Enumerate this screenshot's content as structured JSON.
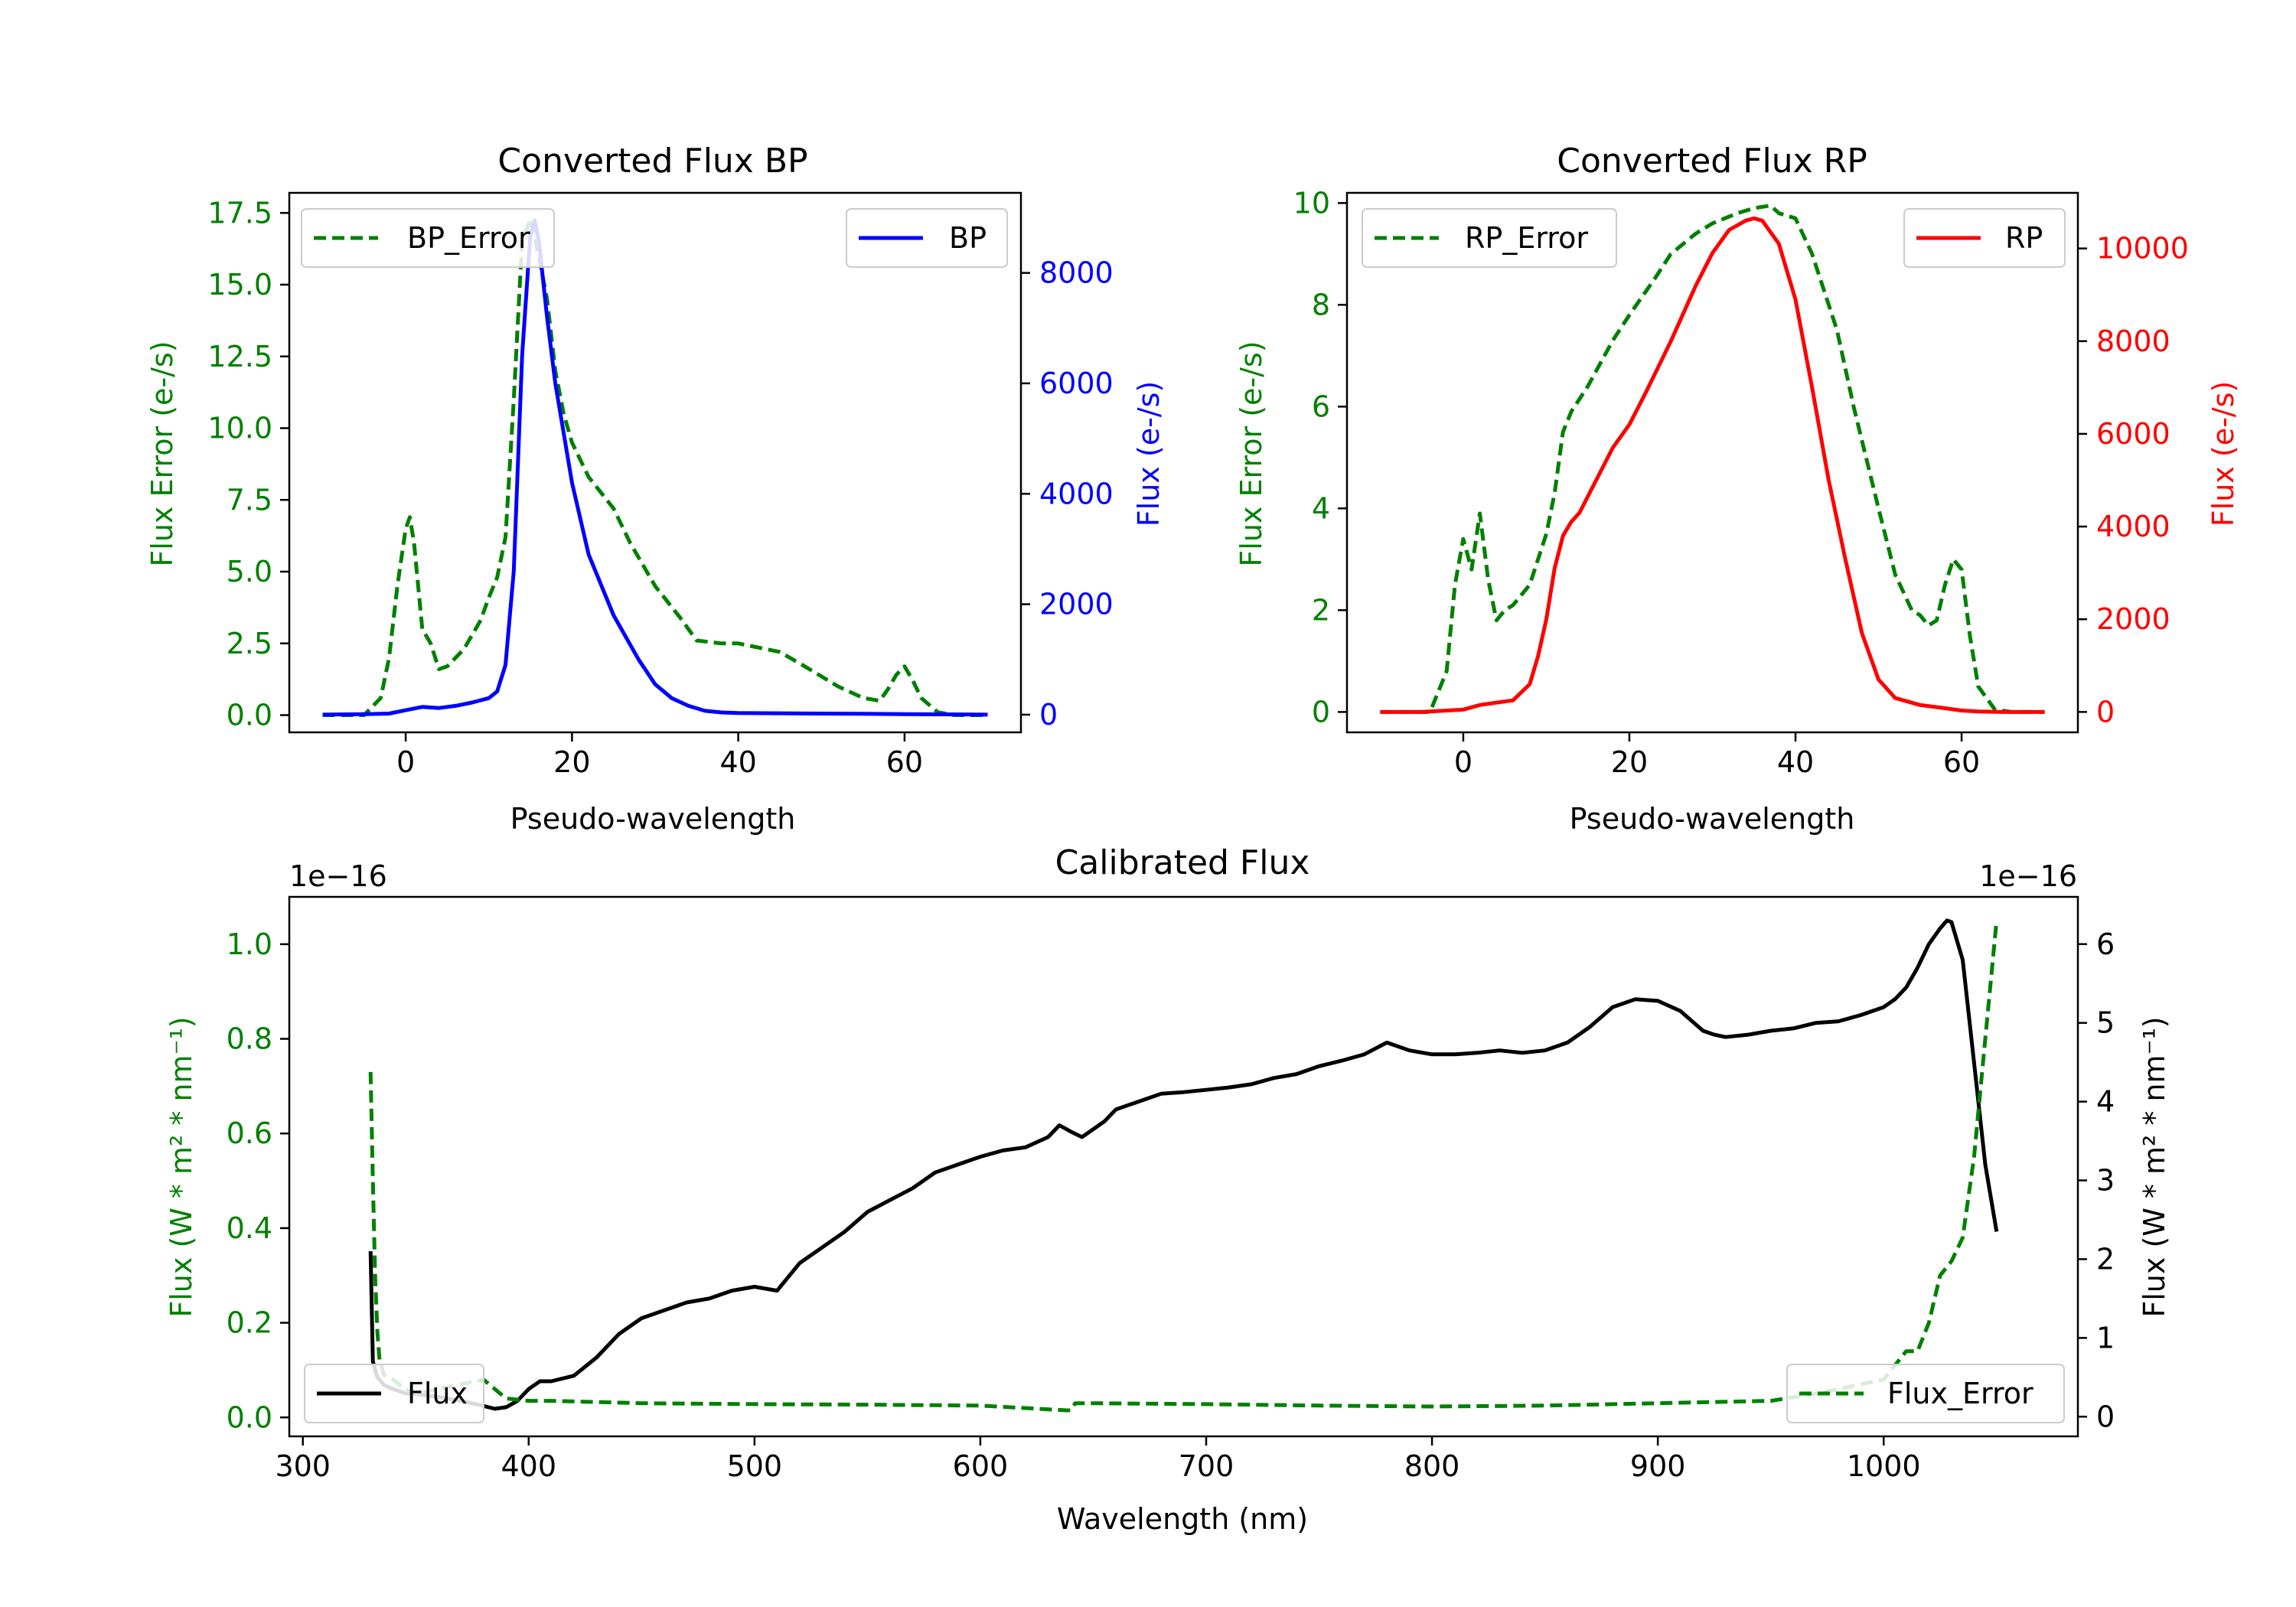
{
  "colors": {
    "green": "#008000",
    "blue": "#0000ff",
    "red": "#ff0000",
    "black": "#000000"
  },
  "chart_data": [
    {
      "id": "bp",
      "type": "line",
      "title": "Converted Flux BP",
      "xlabel": "Pseudo-wavelength",
      "ylabel_left": "Flux Error (e-/s)",
      "ylabel_right": "Flux (e-/s)",
      "xlim": [
        -14,
        74
      ],
      "ylim_left": [
        -0.6,
        18.2
      ],
      "ylim_right": [
        -320,
        9450
      ],
      "xticks": [
        0,
        20,
        40,
        60
      ],
      "yticks_left": [
        0.0,
        2.5,
        5.0,
        7.5,
        10.0,
        12.5,
        15.0,
        17.5
      ],
      "yticks_right": [
        0,
        2000,
        4000,
        6000,
        8000
      ],
      "legend_left": "BP_Error",
      "legend_right": "BP",
      "series": [
        {
          "name": "BP_Error",
          "axis": "left",
          "color": "green",
          "dash": true,
          "x": [
            -10,
            -5,
            -3,
            -2,
            -1,
            0,
            0.5,
            1,
            2,
            3,
            4,
            5,
            7,
            9,
            10,
            11,
            12,
            13,
            14,
            15,
            16,
            17,
            18,
            19,
            20,
            22,
            25,
            27,
            30,
            33,
            35,
            38,
            40,
            45,
            48,
            52,
            55,
            57,
            58,
            59,
            60,
            61,
            62,
            64,
            66,
            70
          ],
          "y": [
            0,
            0,
            0.6,
            2.0,
            4.5,
            6.5,
            6.9,
            6.0,
            3.0,
            2.5,
            1.6,
            1.7,
            2.3,
            3.3,
            4.1,
            4.8,
            6.2,
            11.0,
            16.5,
            17.3,
            16.0,
            14.5,
            12.0,
            10.5,
            9.5,
            8.3,
            7.2,
            6.0,
            4.5,
            3.4,
            2.6,
            2.5,
            2.5,
            2.2,
            1.7,
            1.0,
            0.6,
            0.5,
            0.9,
            1.4,
            1.7,
            1.2,
            0.6,
            0.1,
            0,
            0
          ]
        },
        {
          "name": "BP",
          "axis": "right",
          "color": "blue",
          "dash": false,
          "x": [
            -10,
            -5,
            -2,
            0,
            2,
            4,
            6,
            8,
            10,
            11,
            12,
            13,
            14,
            15,
            15.5,
            16,
            17,
            18,
            20,
            22,
            25,
            28,
            30,
            32,
            34,
            36,
            38,
            40,
            45,
            50,
            55,
            60,
            65,
            70
          ],
          "y": [
            0,
            10,
            20,
            80,
            140,
            120,
            160,
            220,
            300,
            420,
            900,
            2600,
            6500,
            8700,
            8950,
            8600,
            7200,
            6000,
            4200,
            2900,
            1800,
            1000,
            550,
            300,
            160,
            70,
            40,
            30,
            25,
            20,
            15,
            10,
            5,
            0
          ]
        }
      ]
    },
    {
      "id": "rp",
      "type": "line",
      "title": "Converted Flux RP",
      "xlabel": "Pseudo-wavelength",
      "ylabel_left": "Flux Error (e-/s)",
      "ylabel_right": "Flux (e-/s)",
      "xlim": [
        -14,
        74
      ],
      "ylim_left": [
        -0.4,
        10.2
      ],
      "ylim_right": [
        -440,
        11200
      ],
      "xticks": [
        0,
        20,
        40,
        60
      ],
      "yticks_left": [
        0,
        2,
        4,
        6,
        8,
        10
      ],
      "yticks_right": [
        0,
        2000,
        4000,
        6000,
        8000,
        10000
      ],
      "legend_left": "RP_Error",
      "legend_right": "RP",
      "series": [
        {
          "name": "RP_Error",
          "axis": "left",
          "color": "green",
          "dash": true,
          "x": [
            -10,
            -4,
            -2,
            -1,
            0,
            1,
            2,
            3,
            4,
            5,
            6,
            8,
            10,
            11,
            12,
            13,
            15,
            18,
            20,
            23,
            25,
            28,
            30,
            33,
            35,
            37,
            38,
            40,
            42,
            45,
            47,
            50,
            52,
            54,
            55,
            56,
            57,
            58,
            59,
            60,
            61,
            62,
            64,
            66,
            70
          ],
          "y": [
            0,
            0,
            0.8,
            2.5,
            3.4,
            2.8,
            3.9,
            2.6,
            1.8,
            2.0,
            2.1,
            2.5,
            3.5,
            4.3,
            5.5,
            5.9,
            6.4,
            7.3,
            7.8,
            8.5,
            9.0,
            9.4,
            9.6,
            9.8,
            9.9,
            9.95,
            9.8,
            9.7,
            9.0,
            7.5,
            6.0,
            4.0,
            2.7,
            2.0,
            1.9,
            1.7,
            1.8,
            2.5,
            3.0,
            2.8,
            1.5,
            0.5,
            0.05,
            0,
            0
          ]
        },
        {
          "name": "RP",
          "axis": "right",
          "color": "red",
          "dash": false,
          "x": [
            -10,
            -5,
            0,
            2,
            4,
            6,
            8,
            9,
            10,
            11,
            12,
            13,
            14,
            16,
            18,
            20,
            22,
            25,
            28,
            30,
            32,
            34,
            35,
            36,
            38,
            40,
            42,
            44,
            46,
            48,
            50,
            52,
            55,
            58,
            60,
            62,
            65,
            70
          ],
          "y": [
            0,
            0,
            50,
            150,
            200,
            250,
            600,
            1200,
            2000,
            3100,
            3800,
            4100,
            4300,
            5000,
            5700,
            6200,
            6900,
            8000,
            9200,
            9900,
            10400,
            10600,
            10650,
            10600,
            10100,
            8900,
            7000,
            5000,
            3300,
            1700,
            700,
            300,
            150,
            80,
            30,
            10,
            0,
            0
          ]
        }
      ]
    },
    {
      "id": "cal",
      "type": "line",
      "title": "Calibrated Flux",
      "xlabel": "Wavelength (nm)",
      "ylabel_left": "Flux (W * m² * nm⁻¹)",
      "ylabel_right": "Flux (W * m² * nm⁻¹)",
      "offset_left": "1e−16",
      "offset_right": "1e−16",
      "xlim": [
        294,
        1086
      ],
      "ylim_left": [
        -0.04,
        1.1
      ],
      "ylim_right": [
        -0.25,
        6.6
      ],
      "xticks": [
        300,
        400,
        500,
        600,
        700,
        800,
        900,
        1000
      ],
      "xtick_labels": [
        "300",
        "400",
        "500",
        "600",
        "700",
        "800",
        "900",
        "1000"
      ],
      "yticks_left": [
        0.0,
        0.2,
        0.4,
        0.6,
        0.8,
        1.0
      ],
      "yticks_right": [
        0,
        1,
        2,
        3,
        4,
        5,
        6
      ],
      "legend_left": "Flux",
      "legend_right": "Flux_Error",
      "series": [
        {
          "name": "Flux",
          "axis": "right",
          "color": "black",
          "dash": false,
          "x": [
            330,
            331,
            333,
            336,
            340,
            345,
            352,
            360,
            370,
            378,
            385,
            390,
            395,
            400,
            405,
            410,
            420,
            430,
            440,
            450,
            460,
            470,
            480,
            490,
            500,
            510,
            520,
            530,
            540,
            550,
            560,
            570,
            580,
            590,
            600,
            610,
            620,
            630,
            635,
            640,
            645,
            650,
            655,
            660,
            665,
            670,
            680,
            690,
            700,
            710,
            720,
            730,
            740,
            750,
            760,
            770,
            780,
            790,
            800,
            810,
            820,
            830,
            840,
            850,
            860,
            870,
            880,
            890,
            900,
            910,
            920,
            925,
            930,
            940,
            950,
            960,
            970,
            980,
            990,
            1000,
            1005,
            1010,
            1015,
            1020,
            1025,
            1028,
            1030,
            1035,
            1040,
            1045,
            1050
          ],
          "y": [
            2.1,
            0.7,
            0.5,
            0.4,
            0.35,
            0.3,
            0.28,
            0.25,
            0.2,
            0.15,
            0.1,
            0.12,
            0.2,
            0.35,
            0.45,
            0.45,
            0.52,
            0.75,
            1.05,
            1.25,
            1.35,
            1.45,
            1.5,
            1.6,
            1.65,
            1.6,
            1.95,
            2.15,
            2.35,
            2.6,
            2.75,
            2.9,
            3.1,
            3.2,
            3.3,
            3.38,
            3.42,
            3.55,
            3.7,
            3.62,
            3.55,
            3.65,
            3.75,
            3.9,
            3.95,
            4.0,
            4.1,
            4.12,
            4.15,
            4.18,
            4.22,
            4.3,
            4.35,
            4.45,
            4.52,
            4.6,
            4.75,
            4.65,
            4.6,
            4.6,
            4.62,
            4.65,
            4.62,
            4.65,
            4.75,
            4.95,
            5.2,
            5.3,
            5.28,
            5.15,
            4.9,
            4.85,
            4.82,
            4.85,
            4.9,
            4.93,
            5.0,
            5.02,
            5.1,
            5.2,
            5.3,
            5.45,
            5.7,
            6.0,
            6.2,
            6.3,
            6.28,
            5.8,
            4.5,
            3.2,
            2.35
          ]
        },
        {
          "name": "Flux_Error",
          "axis": "left",
          "color": "green",
          "dash": true,
          "x": [
            330,
            331,
            332,
            333,
            334,
            336,
            340,
            345,
            350,
            360,
            370,
            380,
            385,
            390,
            400,
            410,
            450,
            500,
            550,
            600,
            638,
            640,
            642,
            650,
            700,
            750,
            800,
            850,
            900,
            950,
            970,
            980,
            990,
            1000,
            1005,
            1010,
            1015,
            1020,
            1025,
            1030,
            1035,
            1040,
            1045,
            1050
          ],
          "y": [
            0.73,
            0.5,
            0.3,
            0.18,
            0.12,
            0.09,
            0.08,
            0.06,
            0.05,
            0.06,
            0.07,
            0.08,
            0.06,
            0.04,
            0.035,
            0.035,
            0.03,
            0.028,
            0.027,
            0.025,
            0.015,
            0.015,
            0.03,
            0.03,
            0.028,
            0.025,
            0.023,
            0.025,
            0.03,
            0.035,
            0.05,
            0.06,
            0.07,
            0.08,
            0.11,
            0.14,
            0.14,
            0.2,
            0.3,
            0.33,
            0.38,
            0.55,
            0.8,
            1.05
          ]
        }
      ]
    }
  ]
}
